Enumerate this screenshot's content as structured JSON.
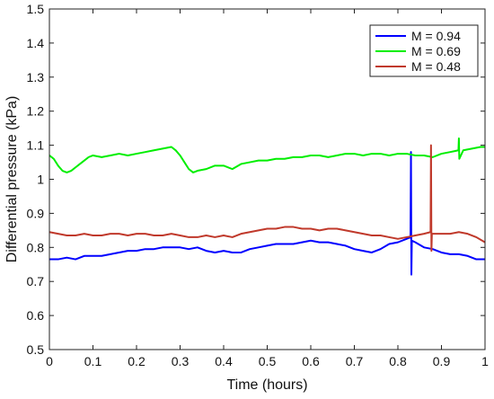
{
  "chart_data": {
    "type": "line",
    "title": "",
    "xlabel": "Time (hours)",
    "ylabel": "Differential pressure (kPa)",
    "xlim": [
      0,
      1
    ],
    "ylim": [
      0.5,
      1.5
    ],
    "x_ticks": [
      0,
      0.1,
      0.2,
      0.3,
      0.4,
      0.5,
      0.6,
      0.7,
      0.8,
      0.9,
      1
    ],
    "y_ticks": [
      0.5,
      0.6,
      0.7,
      0.8,
      0.9,
      1,
      1.1,
      1.2,
      1.3,
      1.4,
      1.5
    ],
    "x_tick_labels": [
      "0",
      "0.1",
      "0.2",
      "0.3",
      "0.4",
      "0.5",
      "0.6",
      "0.7",
      "0.8",
      "0.9",
      "1"
    ],
    "y_tick_labels": [
      "0.5",
      "0.6",
      "0.7",
      "0.8",
      "0.9",
      "1",
      "1.1",
      "1.2",
      "1.3",
      "1.4",
      "1.5"
    ],
    "grid": false,
    "legend_position": "top-right",
    "series": [
      {
        "name": "M = 0.94",
        "color": "#0000ff",
        "x": [
          0,
          0.02,
          0.04,
          0.06,
          0.08,
          0.1,
          0.12,
          0.14,
          0.16,
          0.18,
          0.2,
          0.22,
          0.24,
          0.26,
          0.28,
          0.3,
          0.32,
          0.34,
          0.36,
          0.38,
          0.4,
          0.42,
          0.44,
          0.46,
          0.48,
          0.5,
          0.52,
          0.54,
          0.56,
          0.58,
          0.6,
          0.62,
          0.64,
          0.66,
          0.68,
          0.7,
          0.72,
          0.74,
          0.76,
          0.78,
          0.8,
          0.82,
          0.829,
          0.83,
          0.831,
          0.832,
          0.84,
          0.86,
          0.88,
          0.9,
          0.92,
          0.94,
          0.96,
          0.98,
          1
        ],
        "y": [
          0.765,
          0.765,
          0.77,
          0.765,
          0.775,
          0.775,
          0.775,
          0.78,
          0.785,
          0.79,
          0.79,
          0.795,
          0.795,
          0.8,
          0.8,
          0.8,
          0.795,
          0.8,
          0.79,
          0.785,
          0.79,
          0.785,
          0.785,
          0.795,
          0.8,
          0.805,
          0.81,
          0.81,
          0.81,
          0.815,
          0.82,
          0.815,
          0.815,
          0.81,
          0.805,
          0.795,
          0.79,
          0.785,
          0.795,
          0.81,
          0.815,
          0.825,
          0.83,
          1.08,
          0.72,
          0.82,
          0.815,
          0.8,
          0.795,
          0.785,
          0.78,
          0.78,
          0.775,
          0.765,
          0.765
        ]
      },
      {
        "name": "M = 0.69",
        "color": "#00ee00",
        "x": [
          0,
          0.01,
          0.02,
          0.03,
          0.04,
          0.05,
          0.06,
          0.07,
          0.08,
          0.09,
          0.1,
          0.12,
          0.14,
          0.16,
          0.18,
          0.2,
          0.22,
          0.24,
          0.26,
          0.28,
          0.29,
          0.3,
          0.31,
          0.32,
          0.33,
          0.34,
          0.36,
          0.38,
          0.4,
          0.42,
          0.44,
          0.46,
          0.48,
          0.5,
          0.52,
          0.54,
          0.56,
          0.58,
          0.6,
          0.62,
          0.64,
          0.66,
          0.68,
          0.7,
          0.72,
          0.74,
          0.76,
          0.78,
          0.8,
          0.82,
          0.84,
          0.86,
          0.88,
          0.9,
          0.92,
          0.939,
          0.94,
          0.941,
          0.95,
          0.97,
          0.99,
          1
        ],
        "y": [
          1.07,
          1.06,
          1.04,
          1.025,
          1.02,
          1.025,
          1.035,
          1.045,
          1.055,
          1.065,
          1.07,
          1.065,
          1.07,
          1.075,
          1.07,
          1.075,
          1.08,
          1.085,
          1.09,
          1.095,
          1.085,
          1.07,
          1.05,
          1.03,
          1.02,
          1.025,
          1.03,
          1.04,
          1.04,
          1.03,
          1.045,
          1.05,
          1.055,
          1.055,
          1.06,
          1.06,
          1.065,
          1.065,
          1.07,
          1.07,
          1.065,
          1.07,
          1.075,
          1.075,
          1.07,
          1.075,
          1.075,
          1.07,
          1.075,
          1.075,
          1.07,
          1.07,
          1.065,
          1.075,
          1.08,
          1.085,
          1.12,
          1.06,
          1.085,
          1.09,
          1.095,
          1.095
        ]
      },
      {
        "name": "M = 0.48",
        "color": "#c0392b",
        "x": [
          0,
          0.02,
          0.04,
          0.06,
          0.08,
          0.1,
          0.12,
          0.14,
          0.16,
          0.18,
          0.2,
          0.22,
          0.24,
          0.26,
          0.28,
          0.3,
          0.32,
          0.34,
          0.36,
          0.38,
          0.4,
          0.42,
          0.44,
          0.46,
          0.48,
          0.5,
          0.52,
          0.54,
          0.56,
          0.58,
          0.6,
          0.62,
          0.64,
          0.66,
          0.68,
          0.7,
          0.72,
          0.74,
          0.76,
          0.78,
          0.8,
          0.82,
          0.84,
          0.86,
          0.875,
          0.876,
          0.877,
          0.878,
          0.88,
          0.9,
          0.92,
          0.94,
          0.96,
          0.98,
          1
        ],
        "y": [
          0.845,
          0.84,
          0.835,
          0.835,
          0.84,
          0.835,
          0.835,
          0.84,
          0.84,
          0.835,
          0.84,
          0.84,
          0.835,
          0.835,
          0.84,
          0.835,
          0.83,
          0.83,
          0.835,
          0.83,
          0.835,
          0.83,
          0.84,
          0.845,
          0.85,
          0.855,
          0.855,
          0.86,
          0.86,
          0.855,
          0.855,
          0.85,
          0.855,
          0.855,
          0.85,
          0.845,
          0.84,
          0.835,
          0.835,
          0.83,
          0.825,
          0.83,
          0.835,
          0.84,
          0.845,
          1.1,
          0.79,
          0.84,
          0.84,
          0.84,
          0.84,
          0.845,
          0.84,
          0.83,
          0.815
        ]
      }
    ]
  }
}
